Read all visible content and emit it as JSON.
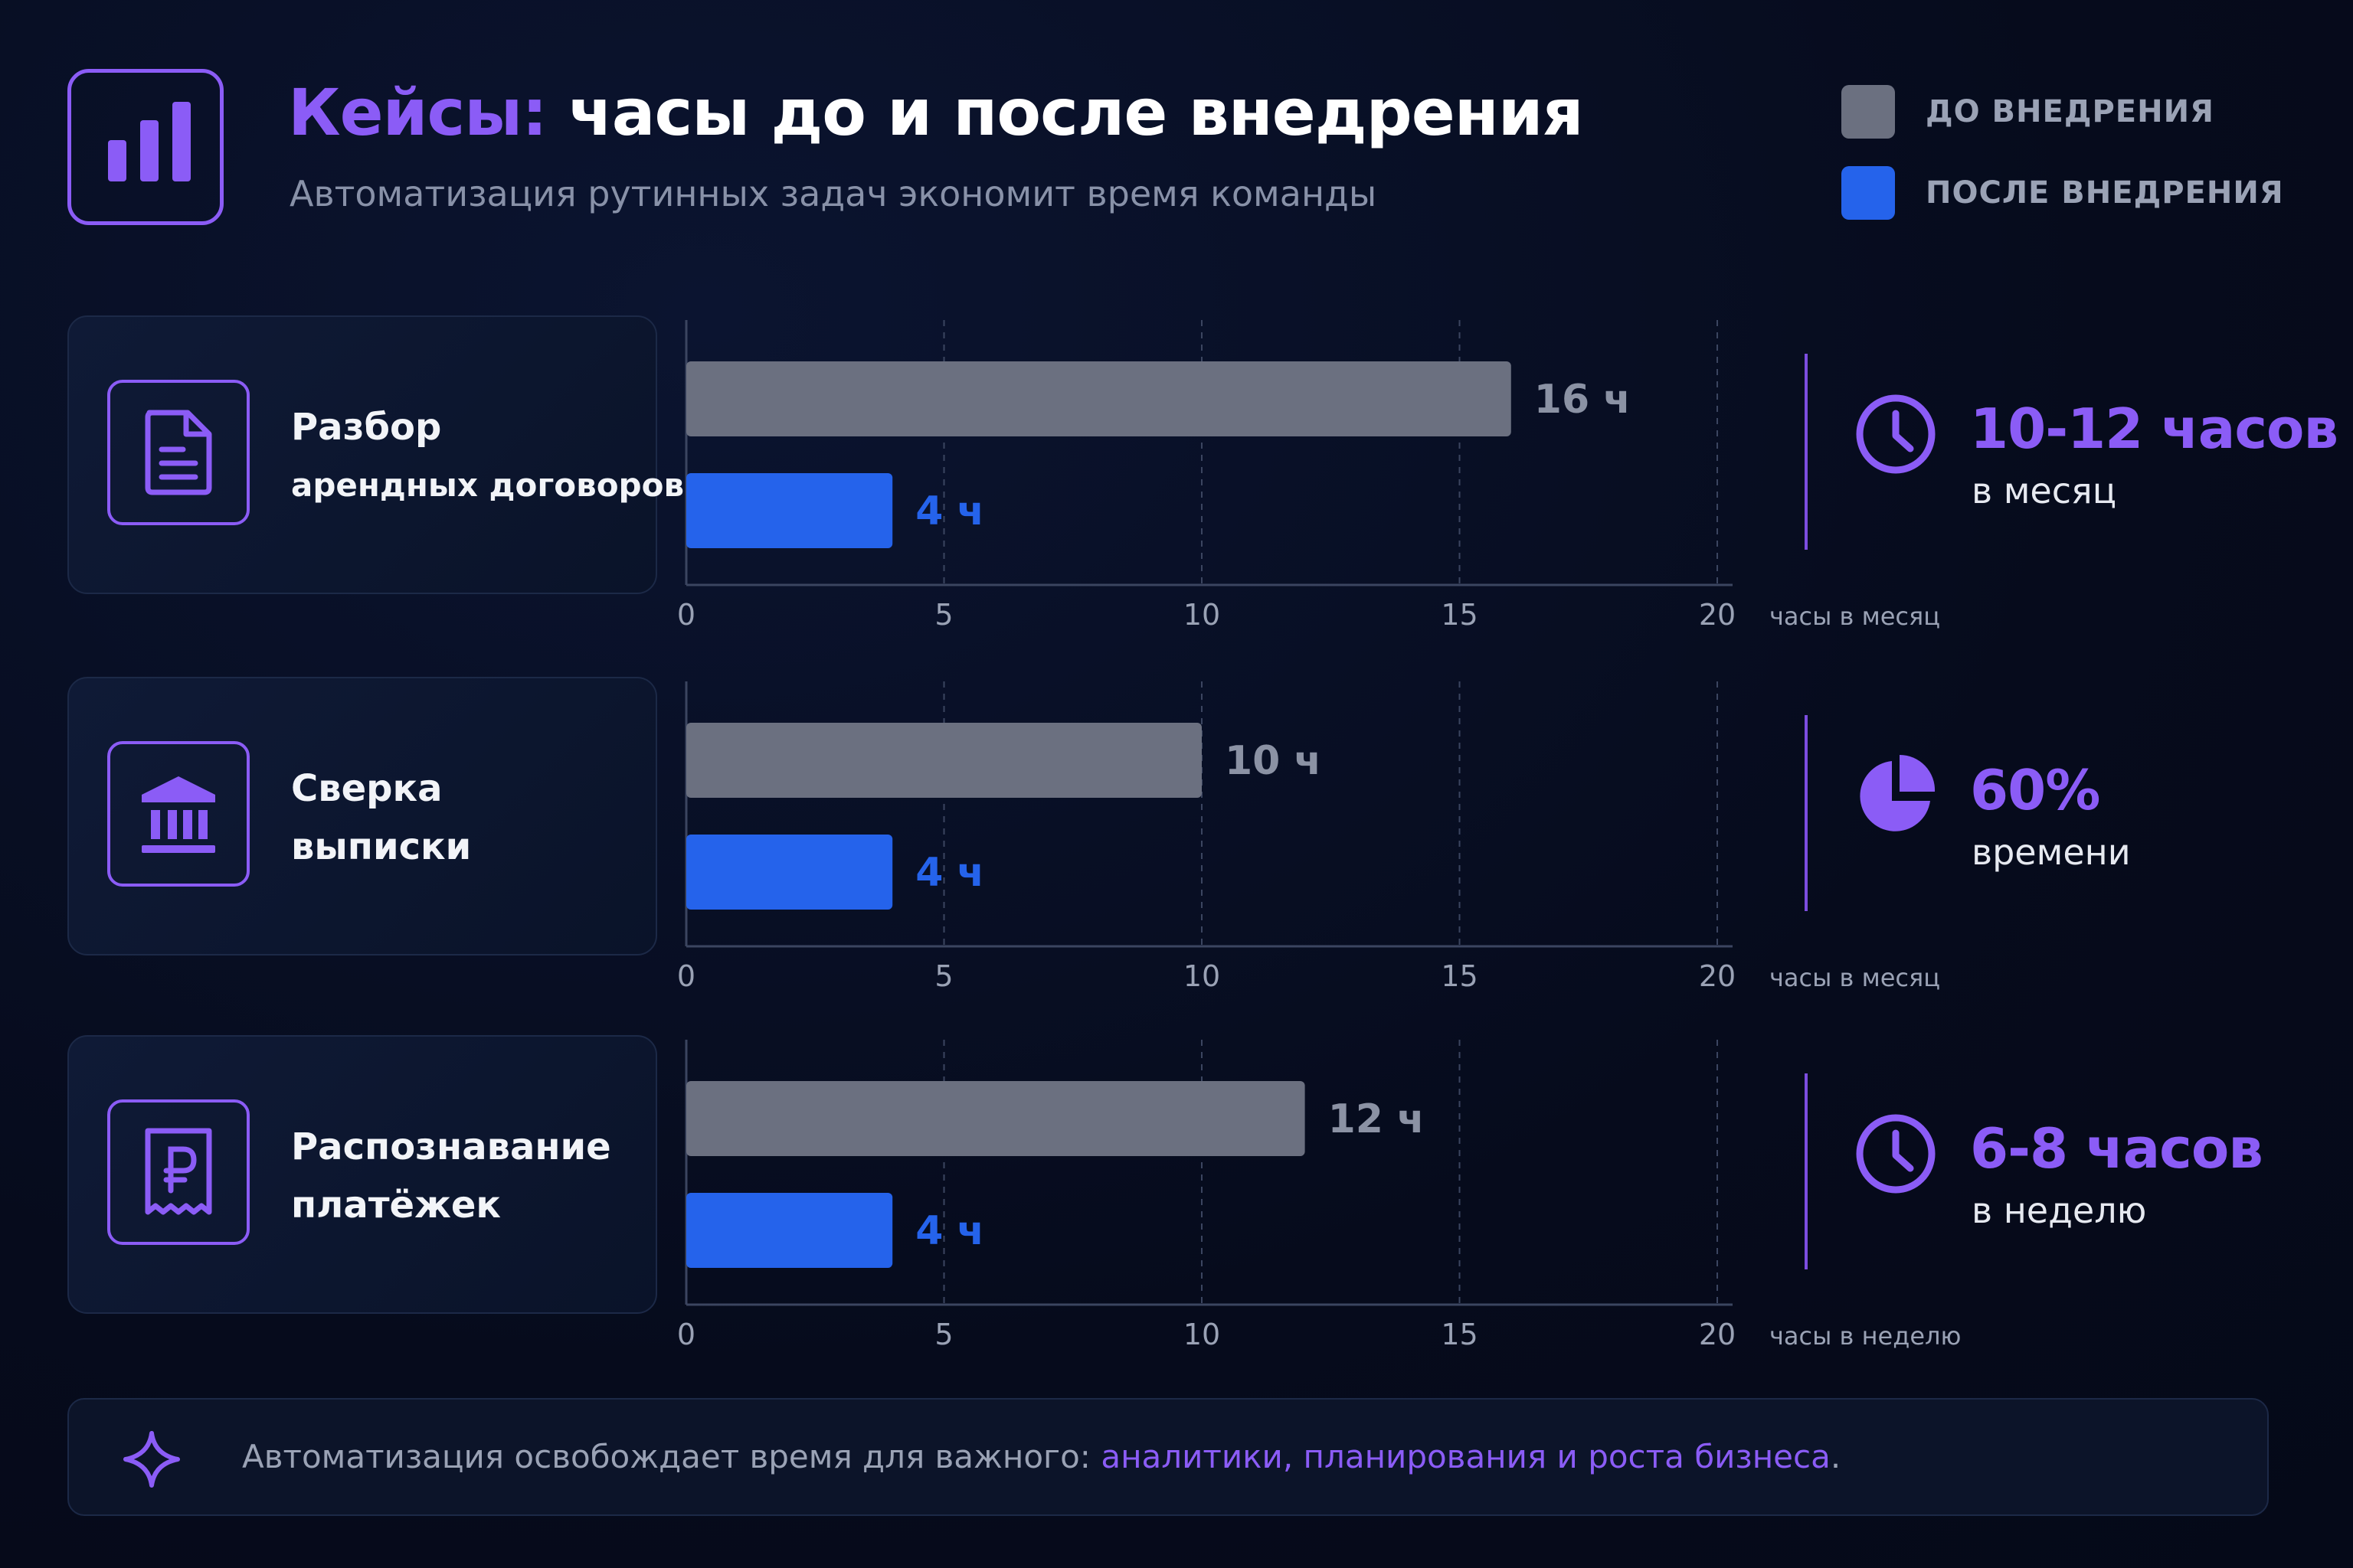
{
  "header": {
    "title_accent": "Кейсы:",
    "title_rest": "часы до и после внедрения",
    "subtitle": "Автоматизация рутинных задач экономит время команды",
    "icon": "bar-chart-icon"
  },
  "legend": {
    "before": {
      "label": "ДО ВНЕДРЕНИЯ",
      "color": "#6b7080"
    },
    "after": {
      "label": "ПОСЛЕ ВНЕДРЕНИЯ",
      "color": "#2563eb"
    }
  },
  "cases": [
    {
      "icon": "document-icon",
      "name_line1": "Разбор",
      "name_line2": "арендных договоров",
      "unit_label": "часы в месяц",
      "stat_icon": "clock-icon",
      "stat_value": "10-12 часов",
      "stat_caption": "в месяц",
      "before_label": "16 ч",
      "after_label": "4 ч"
    },
    {
      "icon": "bank-icon",
      "name_line1": "Сверка",
      "name_line2": "выписки",
      "unit_label": "часы в месяц",
      "stat_icon": "pie-chart-icon",
      "stat_value": "60%",
      "stat_caption": "времени",
      "before_label": "10 ч",
      "after_label": "4 ч"
    },
    {
      "icon": "ruble-receipt-icon",
      "name_line1": "Распознавание",
      "name_line2": "платёжек",
      "unit_label": "часы в неделю",
      "stat_icon": "clock-icon",
      "stat_value": "6-8 часов",
      "stat_caption": "в неделю",
      "before_label": "12 ч",
      "after_label": "4 ч"
    }
  ],
  "chart_data": [
    {
      "type": "bar",
      "orientation": "horizontal",
      "categories": [
        "Разбор арендных договоров"
      ],
      "series": [
        {
          "name": "ДО ВНЕДРЕНИЯ",
          "values": [
            16
          ]
        },
        {
          "name": "ПОСЛЕ ВНЕДРЕНИЯ",
          "values": [
            4
          ]
        }
      ],
      "xlabel": "часы в месяц",
      "xlim": [
        0,
        20
      ],
      "xticks": [
        0,
        5,
        10,
        15,
        20
      ],
      "grid": true
    },
    {
      "type": "bar",
      "orientation": "horizontal",
      "categories": [
        "Сверка выписки"
      ],
      "series": [
        {
          "name": "ДО ВНЕДРЕНИЯ",
          "values": [
            10
          ]
        },
        {
          "name": "ПОСЛЕ ВНЕДРЕНИЯ",
          "values": [
            4
          ]
        }
      ],
      "xlabel": "часы в месяц",
      "xlim": [
        0,
        20
      ],
      "xticks": [
        0,
        5,
        10,
        15,
        20
      ],
      "grid": true
    },
    {
      "type": "bar",
      "orientation": "horizontal",
      "categories": [
        "Распознавание платёжек"
      ],
      "series": [
        {
          "name": "ДО ВНЕДРЕНИЯ",
          "values": [
            12
          ]
        },
        {
          "name": "ПОСЛЕ ВНЕДРЕНИЯ",
          "values": [
            4
          ]
        }
      ],
      "xlabel": "часы в неделю",
      "xlim": [
        0,
        20
      ],
      "xticks": [
        0,
        5,
        10,
        15,
        20
      ],
      "grid": true
    }
  ],
  "footer": {
    "icon": "sparkle-icon",
    "text": "Автоматизация освобождает время для важного:",
    "highlight": "аналитики, планирования и роста бизнеса",
    "end": "."
  }
}
